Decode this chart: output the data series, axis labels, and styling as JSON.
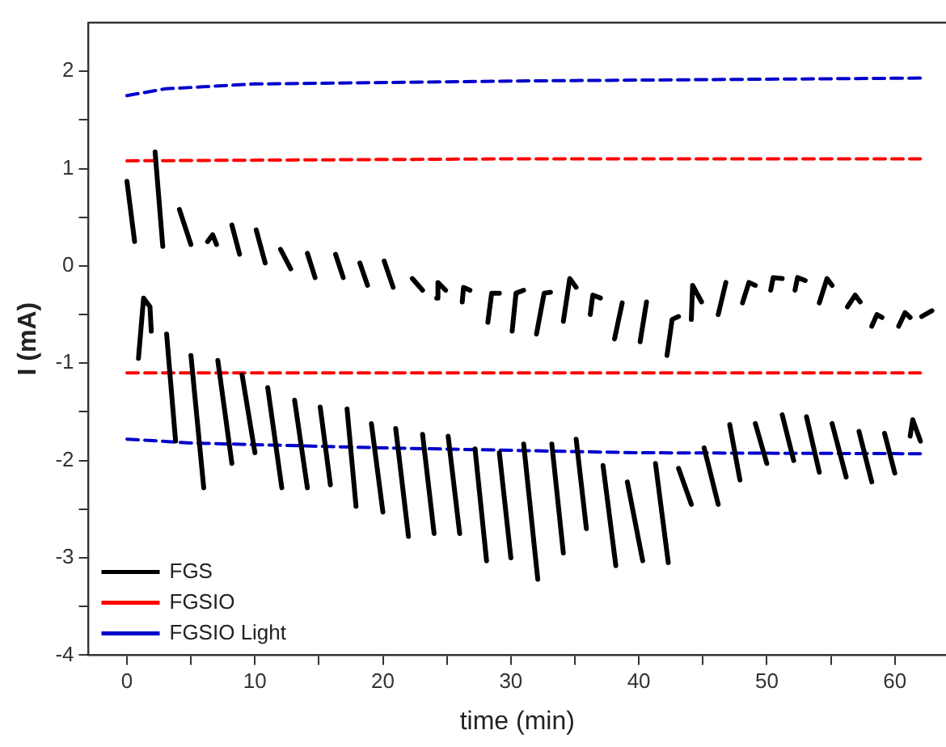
{
  "chart_data": {
    "type": "line",
    "xlabel": "time (min)",
    "ylabel": "I (mA)",
    "xlim": [
      -3,
      64
    ],
    "ylim": [
      -4,
      2.5
    ],
    "xticks": [
      0,
      {
        "value": 5,
        "label": null
      },
      10,
      {
        "value": 15,
        "label": null
      },
      20,
      {
        "value": 25,
        "label": null
      },
      30,
      {
        "value": 35,
        "label": null
      },
      40,
      {
        "value": 45,
        "label": null
      },
      50,
      {
        "value": 55,
        "label": null
      },
      60
    ],
    "yticks": [
      -4,
      {
        "value": -3.5,
        "label": null
      },
      -3,
      {
        "value": -2.5,
        "label": null
      },
      -2,
      {
        "value": -1.5,
        "label": null
      },
      -1,
      {
        "value": -0.5,
        "label": null
      },
      0,
      {
        "value": 0.5,
        "label": null
      },
      1,
      {
        "value": 1.5,
        "label": null
      },
      2
    ],
    "grid": false,
    "legend": "bottom left",
    "marker": "none",
    "series": [
      {
        "name": "FGS",
        "color": "#000000",
        "line_style": "solid",
        "x": [
          0,
          0.6,
          null,
          2.2,
          2.8,
          null,
          4.1,
          5.0,
          null,
          6.3,
          6.7,
          7.0,
          null,
          8.2,
          8.8,
          null,
          10.1,
          10.8,
          null,
          12.0,
          12.8,
          null,
          14.1,
          14.7,
          null,
          16.3,
          16.9,
          null,
          18.2,
          18.8,
          null,
          20.1,
          20.8,
          null,
          22.3,
          23.1,
          null,
          24.2,
          24.3,
          24.9,
          null,
          26.2,
          26.3,
          26.8,
          null,
          28.2,
          28.5,
          29.1,
          null,
          30.1,
          30.4,
          31.0,
          null,
          32.0,
          32.6,
          33.1,
          null,
          34.1,
          34.6,
          35.1,
          null,
          36.2,
          36.4,
          37.0,
          null,
          38.1,
          38.7,
          null,
          40.1,
          40.6,
          null,
          42.2,
          42.6,
          43.1,
          null,
          44.1,
          44.2,
          44.9,
          null,
          46.2,
          46.8,
          null,
          48.1,
          48.6,
          49.1,
          null,
          50.3,
          50.5,
          51.2,
          null,
          52.2,
          52.4,
          53.0,
          null,
          54.1,
          54.7,
          55.1,
          null,
          56.3,
          56.9,
          57.3,
          null,
          58.2,
          58.6,
          59.0,
          null,
          60.3,
          60.8,
          61.2,
          null,
          62.1,
          62.9,
          null,
          0.9,
          1.3,
          1.8,
          1.9,
          null,
          3.1,
          3.8,
          null,
          5.0,
          6.0,
          null,
          7.1,
          8.2,
          null,
          9.0,
          10.0,
          null,
          11.0,
          12.1,
          null,
          13.1,
          14.1,
          null,
          15.1,
          15.9,
          null,
          17.2,
          17.9,
          null,
          19.1,
          20.0,
          null,
          21.0,
          22.0,
          null,
          23.1,
          24.0,
          null,
          25.1,
          26.0,
          null,
          27.2,
          28.1,
          null,
          29.1,
          30.0,
          null,
          31.0,
          32.1,
          null,
          33.2,
          34.1,
          null,
          35.1,
          35.9,
          null,
          37.2,
          38.2,
          null,
          39.1,
          40.3,
          null,
          41.3,
          42.3,
          null,
          43.1,
          44.1,
          null,
          45.1,
          46.2,
          null,
          47.1,
          47.9,
          null,
          49.1,
          50.0,
          null,
          51.2,
          52.1,
          null,
          53.1,
          54.1,
          null,
          55.1,
          56.2,
          null,
          57.2,
          58.2,
          null,
          59.2,
          60.0,
          null,
          61.2,
          61.4,
          62.0
        ],
        "values": [
          0.87,
          0.25,
          null,
          1.17,
          0.2,
          null,
          0.58,
          0.22,
          null,
          0.25,
          0.32,
          0.22,
          null,
          0.42,
          0.12,
          null,
          0.37,
          0.03,
          null,
          0.17,
          -0.03,
          null,
          0.13,
          -0.12,
          null,
          0.12,
          -0.12,
          null,
          0.03,
          -0.2,
          null,
          0.05,
          -0.22,
          null,
          -0.13,
          -0.25,
          null,
          -0.33,
          -0.17,
          -0.25,
          null,
          -0.37,
          -0.22,
          -0.25,
          null,
          -0.58,
          -0.28,
          -0.28,
          null,
          -0.67,
          -0.28,
          -0.25,
          null,
          -0.7,
          -0.28,
          -0.27,
          null,
          -0.57,
          -0.13,
          -0.22,
          null,
          -0.5,
          -0.3,
          -0.33,
          null,
          -0.75,
          -0.38,
          null,
          -0.78,
          -0.37,
          null,
          -0.92,
          -0.55,
          -0.52,
          null,
          -0.55,
          -0.2,
          -0.37,
          null,
          -0.5,
          -0.17,
          null,
          -0.38,
          -0.17,
          -0.2,
          null,
          -0.25,
          -0.12,
          -0.13,
          null,
          -0.25,
          -0.12,
          -0.15,
          null,
          -0.38,
          -0.13,
          -0.2,
          null,
          -0.42,
          -0.3,
          -0.37,
          null,
          -0.62,
          -0.5,
          -0.53,
          null,
          -0.62,
          -0.48,
          -0.53,
          null,
          -0.52,
          -0.46,
          null,
          -0.95,
          -0.33,
          -0.42,
          -0.67,
          null,
          -0.7,
          -1.8,
          null,
          -0.92,
          -2.28,
          null,
          -0.97,
          -2.03,
          null,
          -1.12,
          -1.92,
          null,
          -1.25,
          -2.28,
          null,
          -1.38,
          -2.28,
          null,
          -1.45,
          -2.25,
          null,
          -1.47,
          -2.47,
          null,
          -1.62,
          -2.53,
          null,
          -1.67,
          -2.78,
          null,
          -1.73,
          -2.75,
          null,
          -1.75,
          -2.75,
          null,
          -1.88,
          -3.03,
          null,
          -1.92,
          -3.0,
          null,
          -1.83,
          -3.22,
          null,
          -1.83,
          -2.95,
          null,
          -1.78,
          -2.7,
          null,
          -2.05,
          -3.08,
          null,
          -2.22,
          -3.03,
          null,
          -2.03,
          -3.05,
          null,
          -2.08,
          -2.45,
          null,
          -1.87,
          -2.45,
          null,
          -1.63,
          -2.2,
          null,
          -1.62,
          -2.03,
          null,
          -1.53,
          -2.0,
          null,
          -1.55,
          -2.12,
          null,
          -1.62,
          -2.17,
          null,
          -1.7,
          -2.22,
          null,
          -1.72,
          -2.13,
          null,
          -1.75,
          -1.58,
          -1.8
        ]
      },
      {
        "name": "FGSIO",
        "color": "#ff0000",
        "line_style": "dashed",
        "x": [
          0,
          30,
          62,
          null,
          0,
          62
        ],
        "values": [
          1.08,
          1.1,
          1.1,
          null,
          -1.1,
          -1.1
        ]
      },
      {
        "name": "FGSIO Light",
        "color": "#0000cc",
        "line_style": "dashed",
        "x": [
          0,
          3,
          10,
          30,
          62,
          null,
          0,
          5,
          20,
          40,
          62
        ],
        "values": [
          1.75,
          1.82,
          1.87,
          1.9,
          1.93,
          null,
          -1.78,
          -1.82,
          -1.87,
          -1.92,
          -1.93
        ]
      }
    ]
  }
}
